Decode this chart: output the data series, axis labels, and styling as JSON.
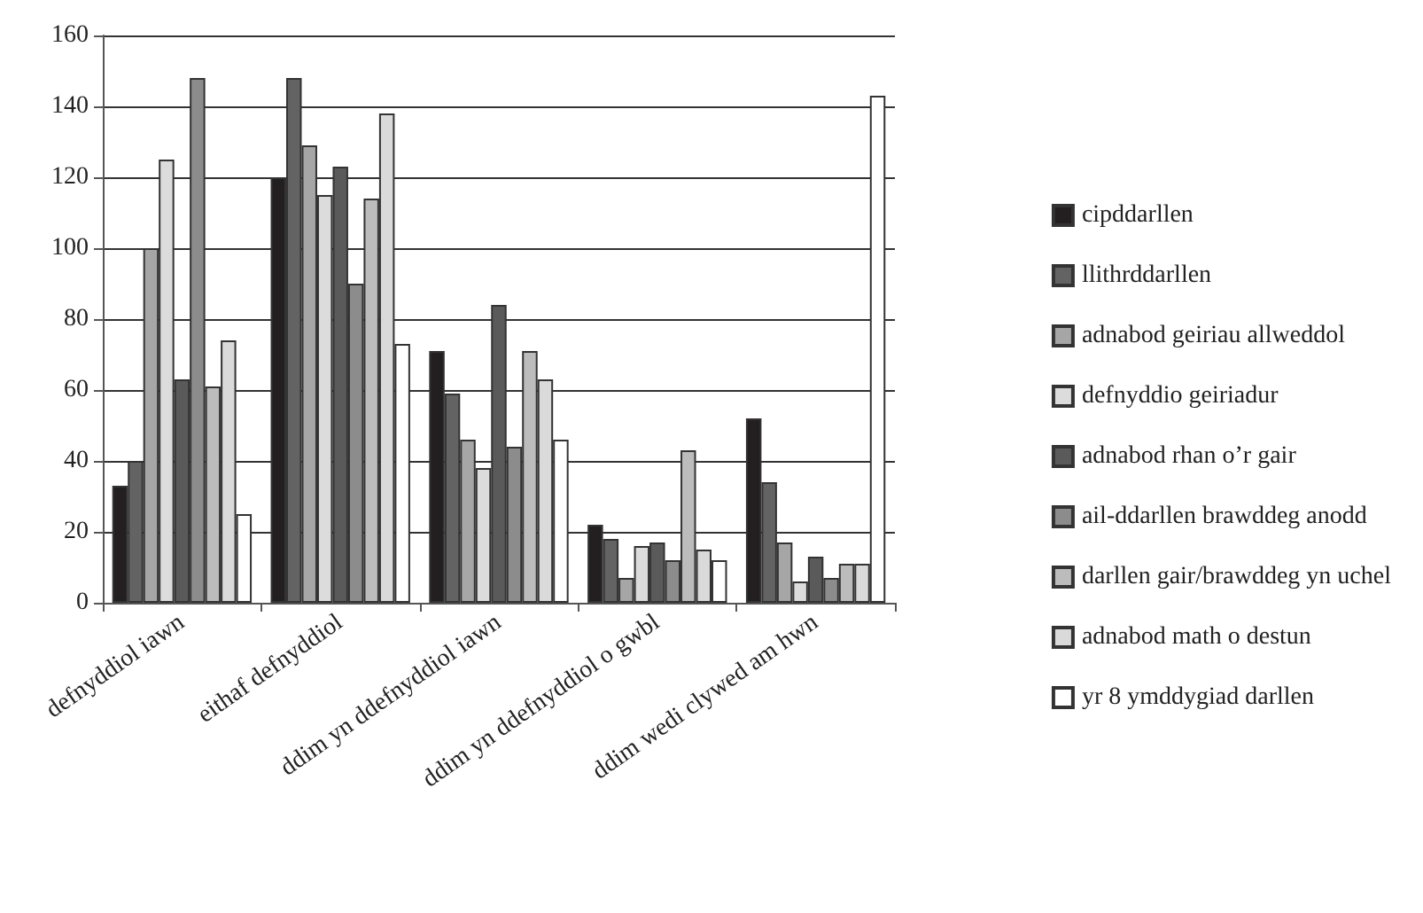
{
  "chart_data": {
    "type": "bar",
    "categories": [
      "defnyddiol iawn",
      "eithaf defnyddiol",
      "ddim yn ddefnyddiol iawn",
      "ddim yn ddefnyddiol o gwbl",
      "ddim wedi clywed am hwn"
    ],
    "series": [
      {
        "name": "cipddarllen",
        "color": "#231f20",
        "values": [
          33,
          120,
          71,
          22,
          52
        ]
      },
      {
        "name": "llithrddarllen",
        "color": "#636363",
        "values": [
          40,
          148,
          59,
          18,
          34
        ]
      },
      {
        "name": "adnabod geiriau allweddol",
        "color": "#a6a6a6",
        "values": [
          100,
          129,
          46,
          7,
          17
        ]
      },
      {
        "name": "defnyddio geiriadur",
        "color": "#dcdcdc",
        "values": [
          125,
          115,
          38,
          16,
          6
        ]
      },
      {
        "name": "adnabod rhan o’r gair",
        "color": "#5a5a5a",
        "values": [
          63,
          123,
          84,
          17,
          13
        ]
      },
      {
        "name": "ail-ddarllen brawddeg anodd",
        "color": "#8c8c8c",
        "values": [
          148,
          90,
          44,
          12,
          7
        ]
      },
      {
        "name": "darllen gair/brawddeg yn uchel",
        "color": "#bcbcbc",
        "values": [
          61,
          114,
          71,
          43,
          11
        ]
      },
      {
        "name": "adnabod math o destun",
        "color": "#dadada",
        "values": [
          74,
          138,
          63,
          15,
          11
        ]
      },
      {
        "name": "yr 8 ymddygiad darllen",
        "color": "#ffffff",
        "values": [
          25,
          73,
          46,
          12,
          143
        ]
      }
    ],
    "ylim": [
      0,
      160
    ],
    "yticks": [
      0,
      20,
      40,
      60,
      80,
      100,
      120,
      140,
      160
    ],
    "grid": "y",
    "legend": "right"
  }
}
